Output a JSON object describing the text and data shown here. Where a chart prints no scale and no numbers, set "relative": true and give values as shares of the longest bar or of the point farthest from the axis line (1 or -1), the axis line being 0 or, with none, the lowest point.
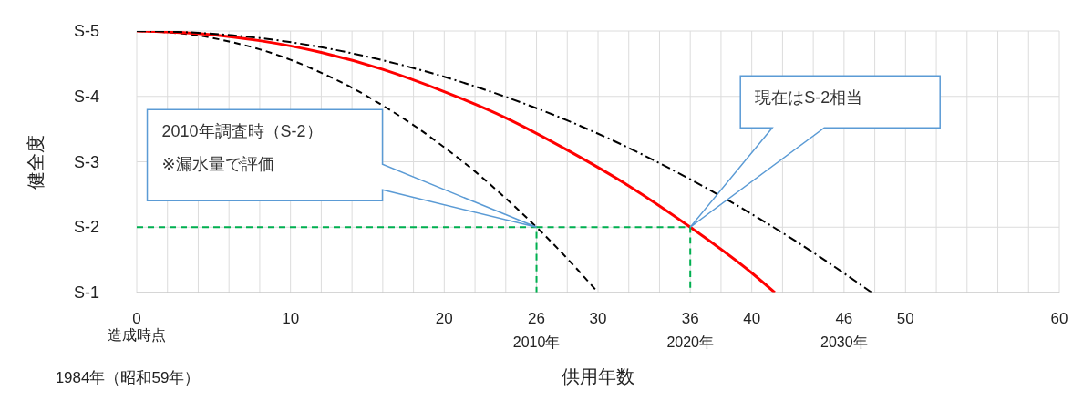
{
  "chart_data": {
    "type": "line",
    "relative": true,
    "xlabel": "供用年数",
    "ylabel": "健全度",
    "xlim": [
      0,
      60
    ],
    "xticks": [
      {
        "value": 0,
        "label": "0\n造成時点"
      },
      {
        "value": 2,
        "label": null
      },
      {
        "value": 4,
        "label": null
      },
      {
        "value": 6,
        "label": null
      },
      {
        "value": 8,
        "label": null
      },
      10,
      {
        "value": 12,
        "label": null
      },
      {
        "value": 14,
        "label": null
      },
      {
        "value": 16,
        "label": null
      },
      {
        "value": 18,
        "label": null
      },
      20,
      {
        "value": 22,
        "label": null
      },
      {
        "value": 24,
        "label": null
      },
      {
        "value": 26,
        "label": "26\n2010年"
      },
      {
        "value": 28,
        "label": null
      },
      30,
      {
        "value": 32,
        "label": null
      },
      {
        "value": 34,
        "label": null
      },
      {
        "value": 36,
        "label": "36\n2020年"
      },
      {
        "value": 38,
        "label": null
      },
      40,
      {
        "value": 42,
        "label": null
      },
      {
        "value": 44,
        "label": null
      },
      {
        "value": 46,
        "label": "46\n2030年"
      },
      {
        "value": 48,
        "label": null
      },
      50,
      {
        "value": 52,
        "label": null
      },
      {
        "value": 54,
        "label": null
      },
      {
        "value": 56,
        "label": null
      },
      {
        "value": 58,
        "label": null
      },
      60
    ],
    "grid": true,
    "series": [
      {
        "color": "#000000",
        "line_style": "dashed",
        "x": [
          0,
          2,
          4,
          6,
          8,
          10,
          12,
          14,
          16,
          18,
          20,
          22,
          24,
          26,
          28,
          30
        ],
        "values": [
          1,
          0.995,
          0.983,
          0.96,
          0.93,
          0.89,
          0.84,
          0.783,
          0.715,
          0.64,
          0.555,
          0.463,
          0.36,
          0.25,
          0.13,
          0
        ]
      },
      {
        "color": "#ff0000",
        "line_style": "solid",
        "x": [
          0,
          4,
          8,
          12,
          16,
          20,
          24,
          28,
          32,
          36,
          40,
          41.5
        ],
        "values": [
          1,
          0.99,
          0.963,
          0.918,
          0.853,
          0.768,
          0.668,
          0.545,
          0.408,
          0.25,
          0.075,
          0
        ]
      },
      {
        "color": "#000000",
        "line_style": "dashdot",
        "x": [
          0,
          4,
          8,
          12,
          16,
          20,
          24,
          28,
          32,
          36,
          40,
          44,
          47.8
        ],
        "values": [
          1,
          0.993,
          0.973,
          0.938,
          0.888,
          0.825,
          0.748,
          0.658,
          0.553,
          0.433,
          0.3,
          0.153,
          0
        ]
      },
      {
        "color": "#00b050",
        "line_style": "dashed",
        "x": [
          0,
          26,
          26
        ],
        "values": [
          0.25,
          0.25,
          0
        ]
      },
      {
        "color": "#00b050",
        "line_style": "dashed",
        "x": [
          26,
          36,
          36
        ],
        "values": [
          0.25,
          0.25,
          0
        ]
      }
    ],
    "annotations": [
      "2010年調査時（S-2）\n※漏水量で評価",
      "現在はS-2相当",
      "1984年（昭和59年）",
      "S-5",
      "S-4",
      "S-3",
      "S-2",
      "S-1"
    ]
  }
}
